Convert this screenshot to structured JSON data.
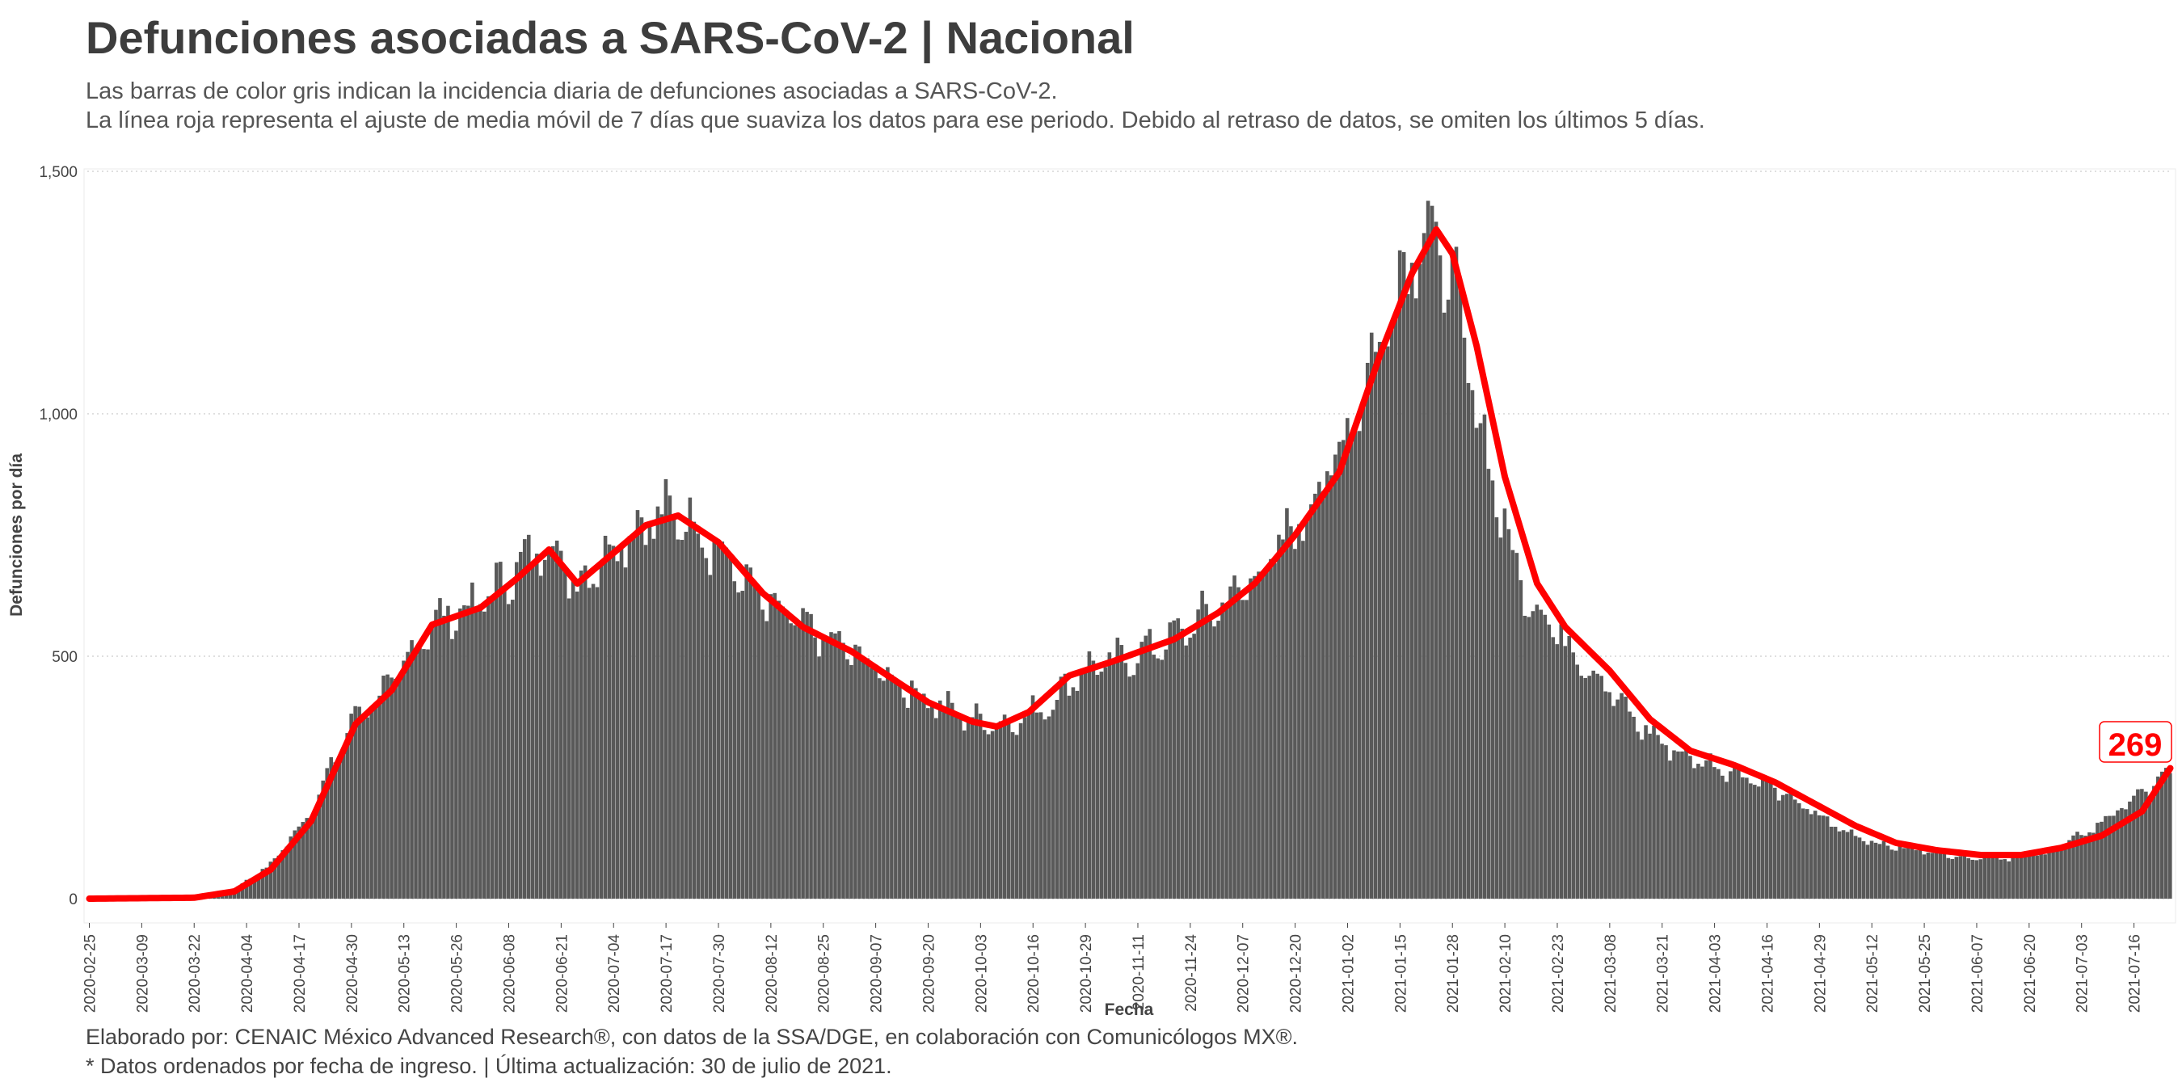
{
  "title": "Defunciones asociadas a SARS-CoV-2 | Nacional",
  "subtitle_line1": "Las barras de color gris indican la incidencia diaria de defunciones asociadas a SARS-CoV-2.",
  "subtitle_line2": "La línea roja representa el ajuste de media móvil de 7 días que suaviza los datos para ese periodo. Debido al retraso de datos, se omiten los últimos 5 días.",
  "caption_line1": "Elaborado por: CENAIC México Advanced Research®, con datos de la SSA/DGE, en colaboración con Comunicólogos MX®.",
  "caption_line2": "* Datos ordenados por fecha de ingreso. | Última actualización: 30 de julio de 2021.",
  "colors": {
    "bars": "#595959",
    "line": "#ff0000",
    "grid": "#cccccc"
  },
  "chart_data": {
    "type": "bar",
    "xlabel": "Fecha",
    "ylabel": "Defunciones por día",
    "x_start": "2020-02-25",
    "x_end": "2021-07-25",
    "ylim": [
      0,
      1500
    ],
    "y_ticks": [
      0,
      500,
      1000,
      1500
    ],
    "y_tick_labels": [
      "0",
      "500",
      "1,000",
      "1,500"
    ],
    "x_tick_labels": [
      "2020-02-25",
      "2020-03-09",
      "2020-03-22",
      "2020-04-04",
      "2020-04-17",
      "2020-04-30",
      "2020-05-13",
      "2020-05-26",
      "2020-06-08",
      "2020-06-21",
      "2020-07-04",
      "2020-07-17",
      "2020-07-30",
      "2020-08-12",
      "2020-08-25",
      "2020-09-07",
      "2020-09-20",
      "2020-10-03",
      "2020-10-16",
      "2020-10-29",
      "2020-11-11",
      "2020-11-24",
      "2020-12-07",
      "2020-12-20",
      "2021-01-02",
      "2021-01-15",
      "2021-01-28",
      "2021-02-10",
      "2021-02-23",
      "2021-03-08",
      "2021-03-21",
      "2021-04-03",
      "2021-04-16",
      "2021-04-29",
      "2021-05-12",
      "2021-05-25",
      "2021-06-07",
      "2021-06-20",
      "2021-07-03",
      "2021-07-16"
    ],
    "grid": true,
    "series": [
      {
        "type": "bar",
        "anchors": [
          [
            "2020-02-25",
            0
          ],
          [
            "2020-03-22",
            2
          ],
          [
            "2020-04-01",
            20
          ],
          [
            "2020-04-10",
            70
          ],
          [
            "2020-04-20",
            180
          ],
          [
            "2020-05-01",
            380
          ],
          [
            "2020-05-10",
            440
          ],
          [
            "2020-05-20",
            570
          ],
          [
            "2020-06-01",
            610
          ],
          [
            "2020-06-10",
            680
          ],
          [
            "2020-06-18",
            740
          ],
          [
            "2020-06-25",
            650
          ],
          [
            "2020-07-05",
            740
          ],
          [
            "2020-07-15",
            790
          ],
          [
            "2020-07-22",
            790
          ],
          [
            "2020-07-30",
            720
          ],
          [
            "2020-08-10",
            610
          ],
          [
            "2020-08-20",
            560
          ],
          [
            "2020-09-01",
            510
          ],
          [
            "2020-09-10",
            460
          ],
          [
            "2020-09-20",
            410
          ],
          [
            "2020-10-01",
            370
          ],
          [
            "2020-10-10",
            360
          ],
          [
            "2020-10-20",
            400
          ],
          [
            "2020-10-28",
            470
          ],
          [
            "2020-11-10",
            500
          ],
          [
            "2020-11-20",
            540
          ],
          [
            "2020-12-01",
            600
          ],
          [
            "2020-12-10",
            660
          ],
          [
            "2020-12-20",
            760
          ],
          [
            "2020-12-31",
            920
          ],
          [
            "2021-01-10",
            1150
          ],
          [
            "2021-01-18",
            1350
          ],
          [
            "2021-01-22",
            1380
          ],
          [
            "2021-01-27",
            1300
          ],
          [
            "2021-02-01",
            1100
          ],
          [
            "2021-02-07",
            860
          ],
          [
            "2021-02-14",
            650
          ],
          [
            "2021-02-22",
            560
          ],
          [
            "2021-03-05",
            460
          ],
          [
            "2021-03-15",
            360
          ],
          [
            "2021-03-25",
            300
          ],
          [
            "2021-04-05",
            270
          ],
          [
            "2021-04-15",
            240
          ],
          [
            "2021-04-25",
            190
          ],
          [
            "2021-05-05",
            140
          ],
          [
            "2021-05-15",
            110
          ],
          [
            "2021-05-25",
            100
          ],
          [
            "2021-06-05",
            85
          ],
          [
            "2021-06-15",
            85
          ],
          [
            "2021-06-25",
            95
          ],
          [
            "2021-07-05",
            140
          ],
          [
            "2021-07-15",
            200
          ],
          [
            "2021-07-25",
            260
          ]
        ]
      },
      {
        "type": "line",
        "anchors": [
          [
            "2020-02-25",
            0
          ],
          [
            "2020-03-22",
            2
          ],
          [
            "2020-04-01",
            15
          ],
          [
            "2020-04-10",
            60
          ],
          [
            "2020-04-20",
            160
          ],
          [
            "2020-05-01",
            360
          ],
          [
            "2020-05-10",
            430
          ],
          [
            "2020-05-20",
            565
          ],
          [
            "2020-06-01",
            600
          ],
          [
            "2020-06-10",
            660
          ],
          [
            "2020-06-18",
            720
          ],
          [
            "2020-06-25",
            650
          ],
          [
            "2020-07-05",
            720
          ],
          [
            "2020-07-12",
            770
          ],
          [
            "2020-07-20",
            790
          ],
          [
            "2020-07-30",
            735
          ],
          [
            "2020-08-10",
            630
          ],
          [
            "2020-08-20",
            560
          ],
          [
            "2020-09-01",
            510
          ],
          [
            "2020-09-10",
            460
          ],
          [
            "2020-09-20",
            405
          ],
          [
            "2020-10-01",
            365
          ],
          [
            "2020-10-07",
            355
          ],
          [
            "2020-10-15",
            385
          ],
          [
            "2020-10-25",
            460
          ],
          [
            "2020-11-05",
            490
          ],
          [
            "2020-11-20",
            535
          ],
          [
            "2020-12-01",
            590
          ],
          [
            "2020-12-10",
            650
          ],
          [
            "2020-12-20",
            750
          ],
          [
            "2020-12-31",
            880
          ],
          [
            "2021-01-10",
            1120
          ],
          [
            "2021-01-18",
            1290
          ],
          [
            "2021-01-24",
            1380
          ],
          [
            "2021-01-28",
            1330
          ],
          [
            "2021-02-03",
            1140
          ],
          [
            "2021-02-10",
            870
          ],
          [
            "2021-02-18",
            650
          ],
          [
            "2021-02-25",
            560
          ],
          [
            "2021-03-08",
            470
          ],
          [
            "2021-03-18",
            370
          ],
          [
            "2021-03-28",
            305
          ],
          [
            "2021-04-08",
            275
          ],
          [
            "2021-04-18",
            240
          ],
          [
            "2021-04-28",
            195
          ],
          [
            "2021-05-08",
            150
          ],
          [
            "2021-05-18",
            115
          ],
          [
            "2021-05-28",
            100
          ],
          [
            "2021-06-08",
            90
          ],
          [
            "2021-06-18",
            90
          ],
          [
            "2021-06-28",
            105
          ],
          [
            "2021-07-08",
            130
          ],
          [
            "2021-07-18",
            180
          ],
          [
            "2021-07-25",
            269
          ]
        ]
      }
    ],
    "end_label": "269"
  }
}
